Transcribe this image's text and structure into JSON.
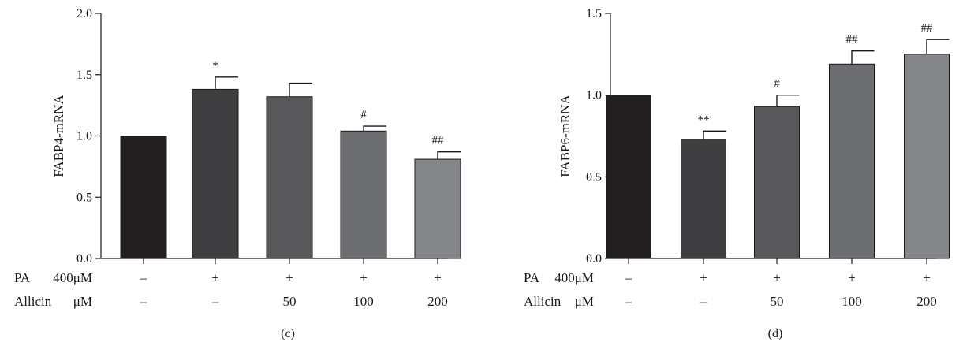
{
  "chart_data": [
    {
      "type": "bar",
      "panel_label": "(c)",
      "ylabel": "FABP4-mRNA",
      "ylim": [
        0,
        2.0
      ],
      "yticks": [
        0.0,
        0.5,
        1.0,
        1.5,
        2.0
      ],
      "ytick_labels": [
        "0.0",
        "0.5",
        "1.0",
        "1.5",
        "2.0"
      ],
      "values": [
        1.0,
        1.38,
        1.32,
        1.04,
        0.81
      ],
      "errors": [
        0.0,
        0.1,
        0.11,
        0.04,
        0.06
      ],
      "significance": [
        "",
        "*",
        "",
        "#",
        "##"
      ],
      "bar_colors": [
        "#231f20",
        "#3f3f41",
        "#58585b",
        "#6d6e72",
        "#85868a"
      ],
      "treatment_rows": [
        {
          "name": "PA",
          "unit": "400μM",
          "values": [
            "–",
            "+",
            "+",
            "+",
            "+"
          ]
        },
        {
          "name": "Allicin",
          "unit": "μM",
          "values": [
            "–",
            "–",
            "50",
            "100",
            "200"
          ]
        }
      ]
    },
    {
      "type": "bar",
      "panel_label": "(d)",
      "ylabel": "FABP6-mRNA",
      "ylim": [
        0,
        1.5
      ],
      "yticks": [
        0.0,
        0.5,
        1.0,
        1.5
      ],
      "ytick_labels": [
        "0.0",
        "0.5",
        "1.0",
        "1.5"
      ],
      "values": [
        1.0,
        0.73,
        0.93,
        1.19,
        1.25
      ],
      "errors": [
        0.0,
        0.05,
        0.07,
        0.08,
        0.09
      ],
      "significance": [
        "",
        "**",
        "#",
        "##",
        "##"
      ],
      "bar_colors": [
        "#231f20",
        "#3f3f41",
        "#58585b",
        "#6d6e72",
        "#85868a"
      ],
      "treatment_rows": [
        {
          "name": "PA",
          "unit": "400μM",
          "values": [
            "–",
            "+",
            "+",
            "+",
            "+"
          ]
        },
        {
          "name": "Allicin",
          "unit": "μM",
          "values": [
            "–",
            "–",
            "50",
            "100",
            "200"
          ]
        }
      ]
    }
  ]
}
